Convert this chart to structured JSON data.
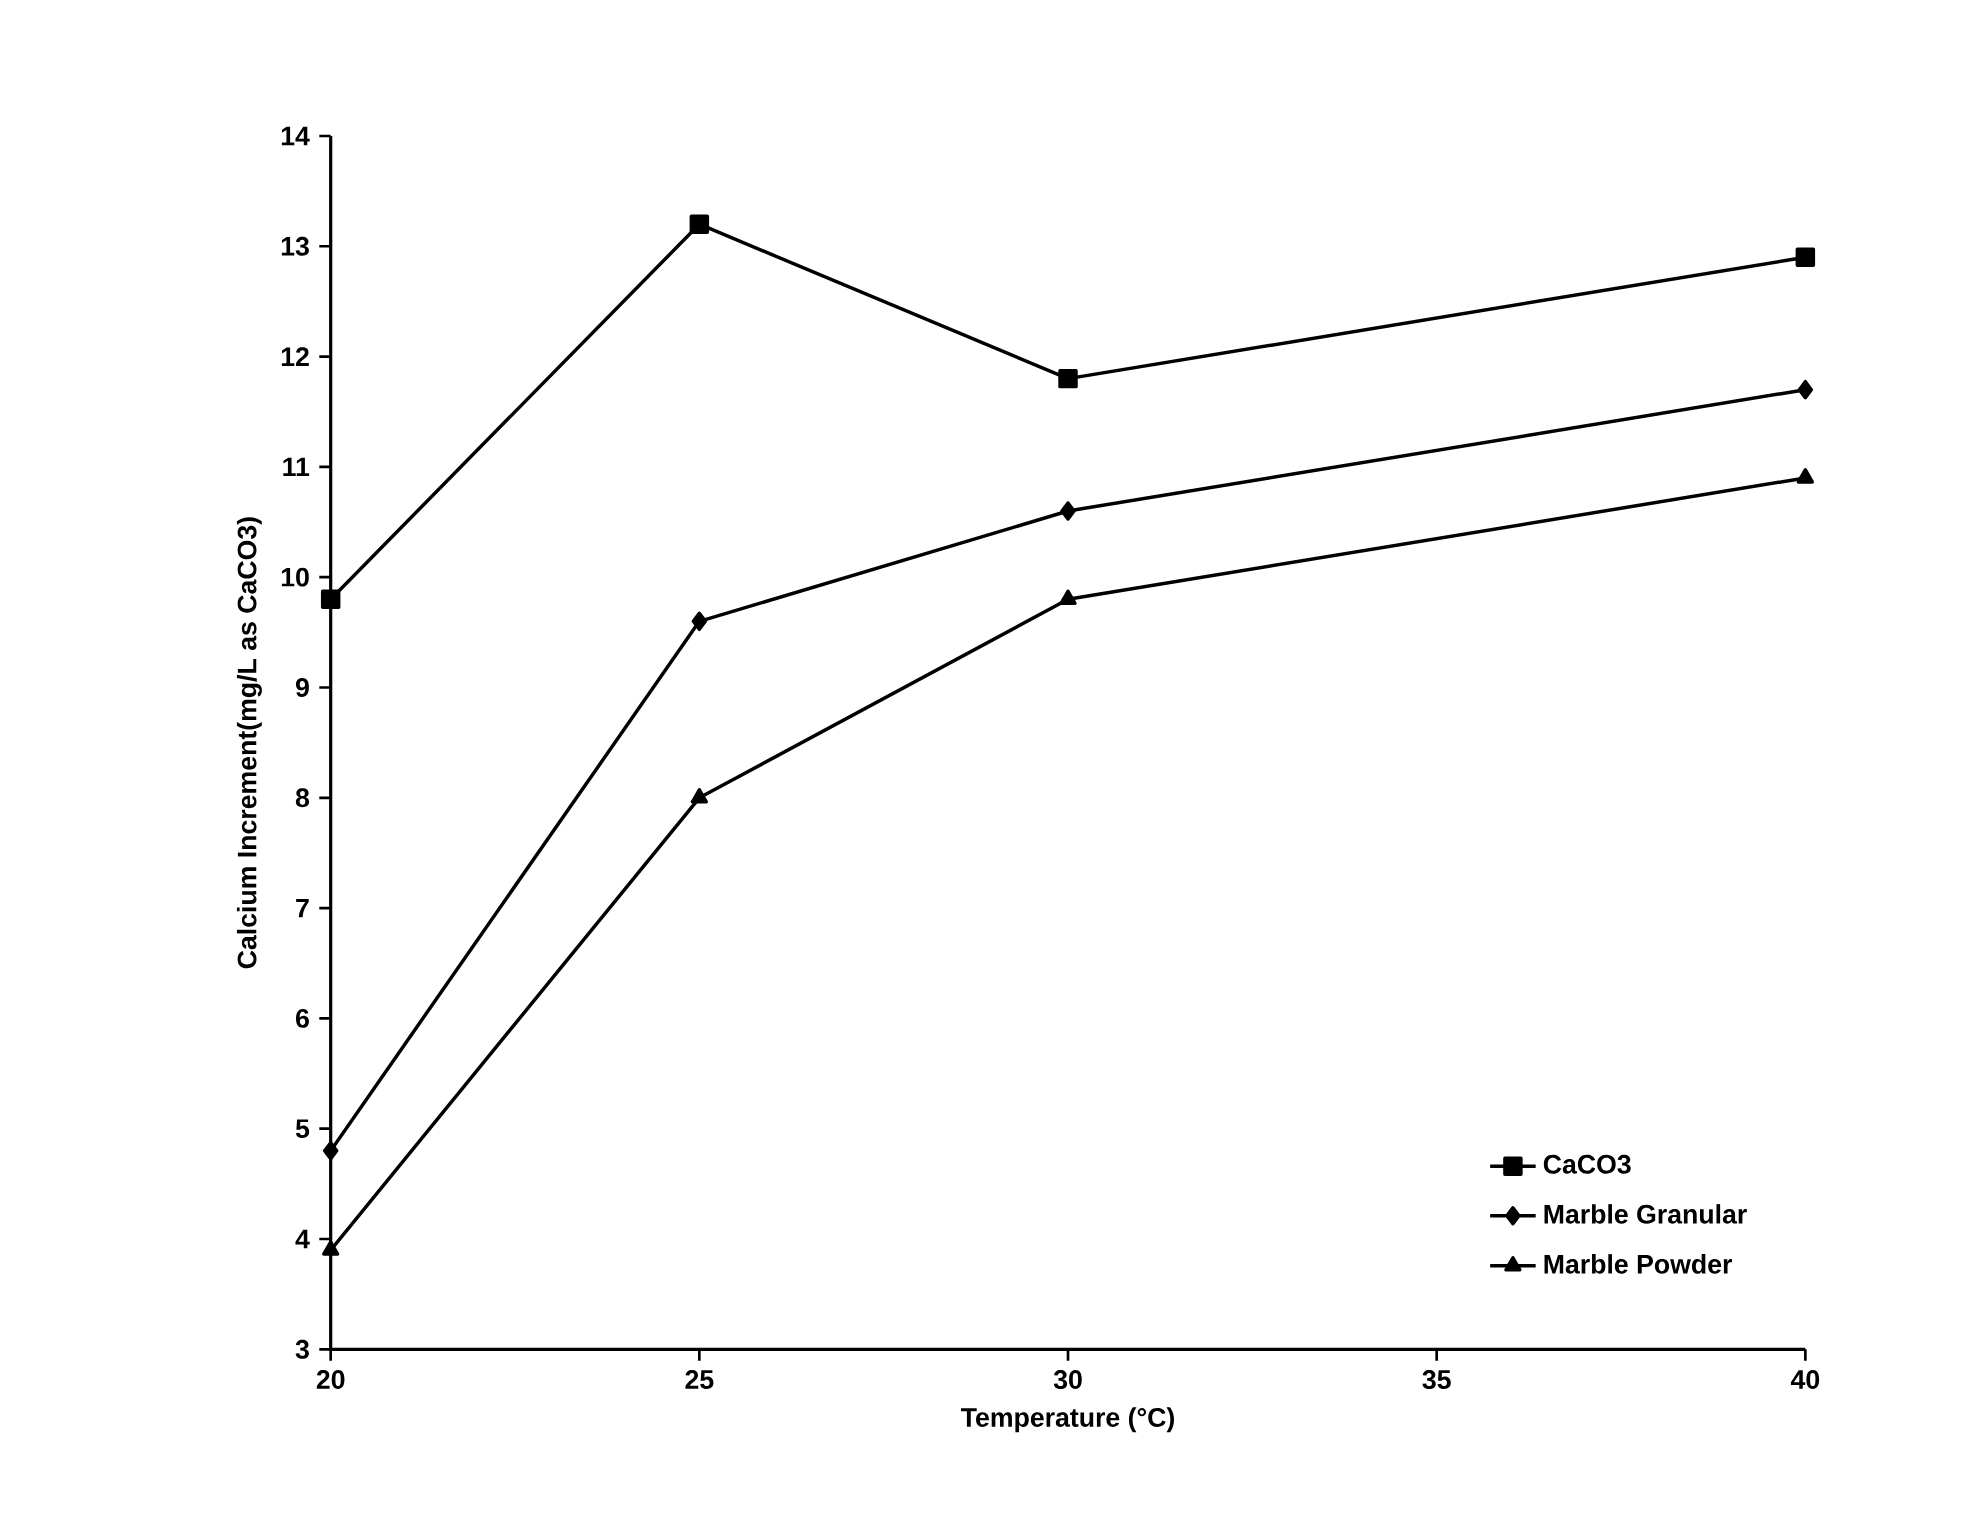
{
  "chart_data": {
    "type": "line",
    "xlabel": "Temperature (°C)",
    "ylabel": "Calcium Increment(mg/L as CaCO3)",
    "x": [
      20,
      25,
      30,
      40
    ],
    "series": [
      {
        "name": "CaCO3",
        "color": "#000000",
        "marker": "square",
        "values": [
          9.8,
          13.2,
          11.8,
          12.9
        ]
      },
      {
        "name": "Marble Granular",
        "color": "#000000",
        "marker": "diamond",
        "values": [
          4.8,
          9.6,
          10.6,
          11.7
        ]
      },
      {
        "name": "Marble Powder",
        "color": "#000000",
        "marker": "triangle",
        "values": [
          3.9,
          8.0,
          9.8,
          10.9
        ]
      }
    ],
    "xlim": [
      20,
      40
    ],
    "xticks": [
      20,
      25,
      30,
      35,
      40
    ],
    "ylim": [
      3,
      14
    ],
    "yticks": [
      3,
      4,
      5,
      6,
      7,
      8,
      9,
      10,
      11,
      12,
      13,
      14
    ],
    "legend": "bottom right",
    "line_style": "solid"
  }
}
